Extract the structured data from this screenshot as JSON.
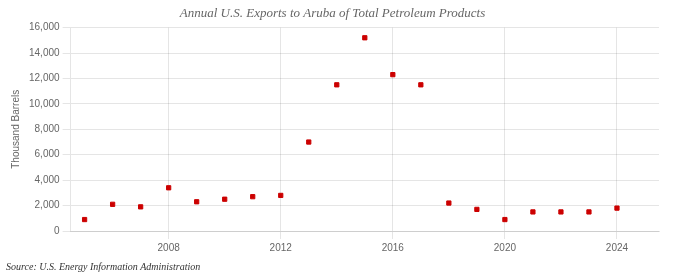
{
  "chart_data": {
    "type": "scatter",
    "title": "Annual U.S. Exports to Aruba of Total Petroleum Products",
    "ylabel": "Thousand Barrels",
    "annotations": [
      "Source: U.S. Energy Information Administration"
    ],
    "x": [
      2005,
      2006,
      2007,
      2008,
      2009,
      2010,
      2011,
      2012,
      2013,
      2014,
      2015,
      2016,
      2017,
      2018,
      2019,
      2020,
      2021,
      2022,
      2023,
      2024
    ],
    "values": [
      900,
      2100,
      1900,
      3400,
      2300,
      2500,
      2700,
      2800,
      7000,
      11500,
      15200,
      12300,
      11500,
      2200,
      1700,
      900,
      1500,
      1500,
      1500,
      1800
    ],
    "color": "#cc0000",
    "marker": "square",
    "xlim": [
      2004.5,
      2025.5
    ],
    "xticks": [
      2008,
      2012,
      2016,
      2020,
      2024
    ],
    "ylim": [
      0,
      16000
    ],
    "yticks": [
      0,
      {
        "value": 2000,
        "label": "2,000"
      },
      {
        "value": 4000,
        "label": "4,000"
      },
      {
        "value": 6000,
        "label": "6,000"
      },
      {
        "value": 8000,
        "label": "8,000"
      },
      {
        "value": 10000,
        "label": "10,000"
      },
      {
        "value": 12000,
        "label": "12,000"
      },
      {
        "value": 14000,
        "label": "14,000"
      },
      {
        "value": 16000,
        "label": "16,000"
      }
    ],
    "grid": true
  }
}
